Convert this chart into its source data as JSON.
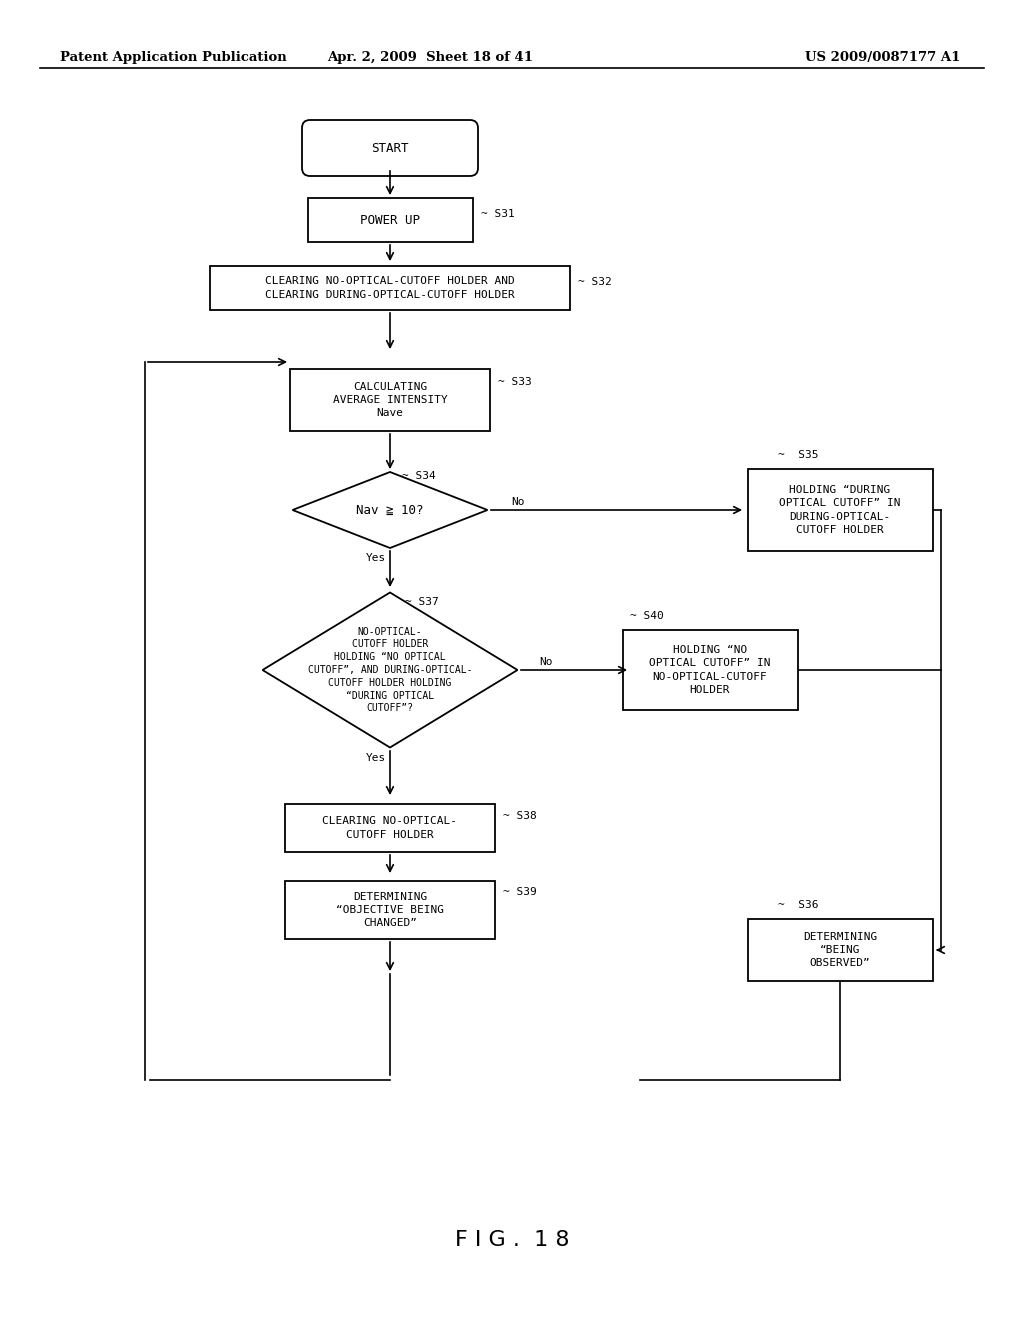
{
  "title_left": "Patent Application Publication",
  "title_mid": "Apr. 2, 2009  Sheet 18 of 41",
  "title_right": "US 2009/0087177 A1",
  "fig_label": "F I G .  1 8",
  "bg_color": "#ffffff",
  "line_color": "#000000"
}
